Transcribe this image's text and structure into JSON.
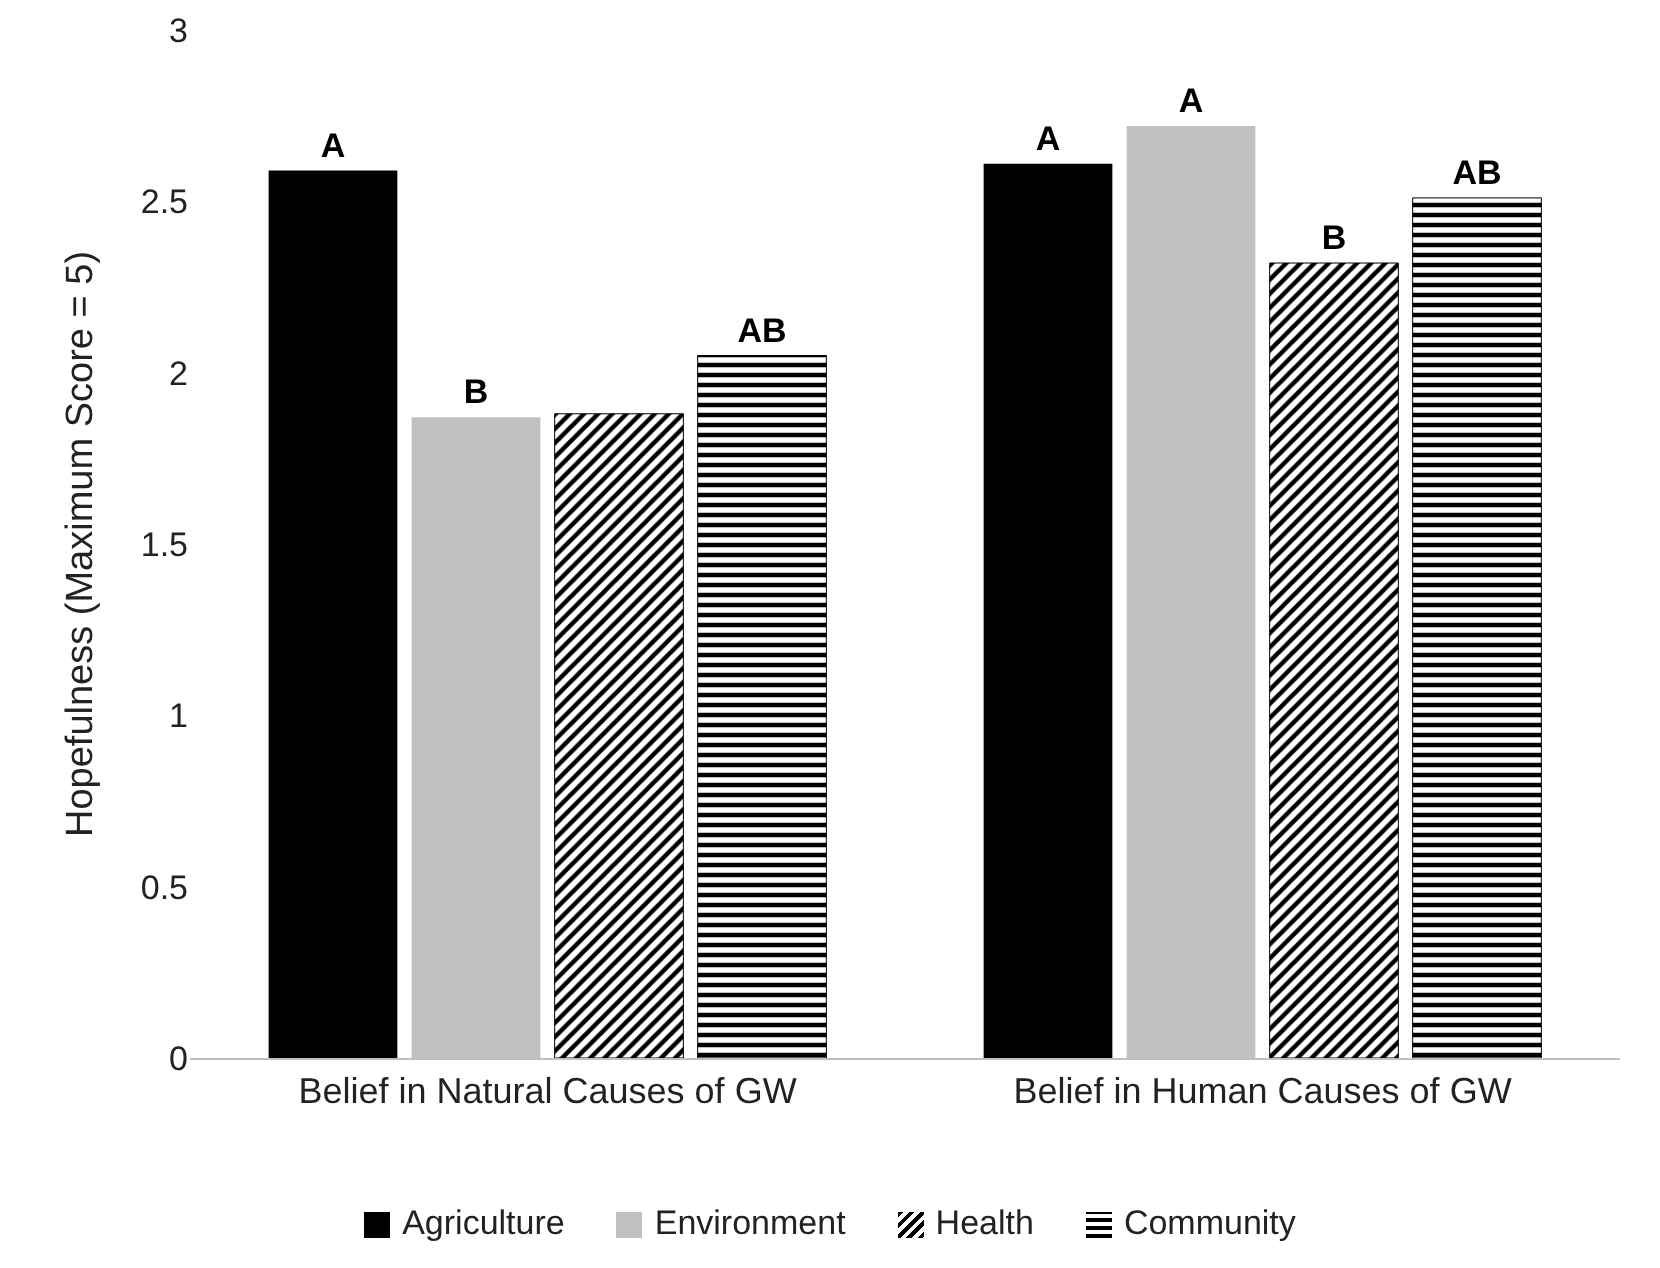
{
  "chart_data": {
    "type": "bar",
    "ylabel": "Hopefulness (Maximum Score = 5)",
    "categories": [
      "Belief in Natural Causes of GW",
      "Belief in Human Causes of GW"
    ],
    "series": [
      {
        "name": "Agriculture",
        "color": "#000000",
        "values": [
          2.59,
          2.61
        ],
        "value_labels": [
          "A",
          "A"
        ]
      },
      {
        "name": "Environment",
        "color": "#c0c0c0",
        "values": [
          1.87,
          2.72
        ],
        "value_labels": [
          "B",
          "A"
        ]
      },
      {
        "name": "Health",
        "color": "#000000",
        "values": [
          1.88,
          2.32
        ],
        "value_labels": [
          null,
          "B"
        ]
      },
      {
        "name": "Community",
        "color": "#000000",
        "values": [
          2.05,
          2.51
        ],
        "value_labels": [
          "AB",
          "AB"
        ]
      }
    ],
    "ylim": [
      0,
      3
    ],
    "yticks": [
      0,
      0.5,
      1,
      1.5,
      2,
      2.5,
      3
    ],
    "grid": false,
    "legend": "bottom"
  }
}
